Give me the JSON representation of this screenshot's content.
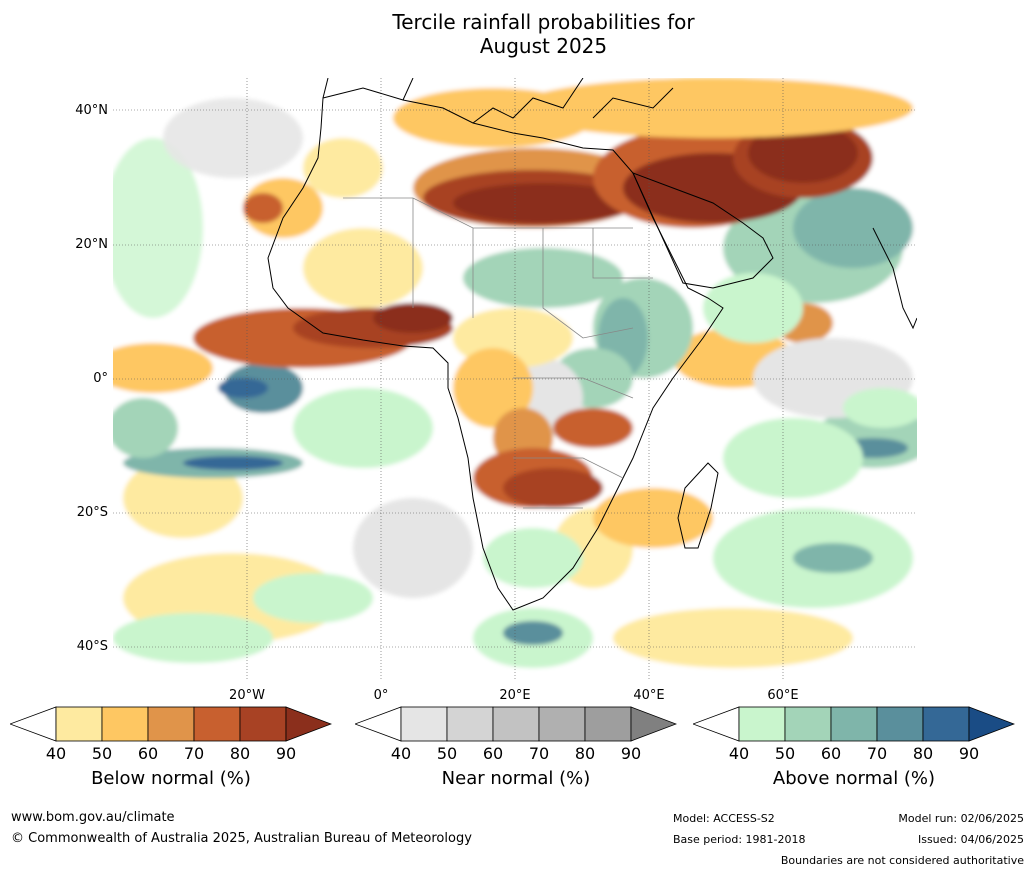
{
  "title_line1": "Tercile rainfall probabilities for",
  "title_line2": "August 2025",
  "lat_labels": [
    "40°N",
    "20°N",
    "0°",
    "20°S",
    "40°S"
  ],
  "lon_labels": [
    "20°W",
    "0°",
    "20°E",
    "40°E",
    "60°E"
  ],
  "colorbars": [
    {
      "label": "Below normal (%)",
      "ticks": [
        "40",
        "50",
        "60",
        "70",
        "80",
        "90"
      ],
      "colors": [
        "#ffffff",
        "#feeaa0",
        "#fec762",
        "#e0944a",
        "#c8602f",
        "#a84224",
        "#8b2f1c"
      ]
    },
    {
      "label": "Near normal (%)",
      "ticks": [
        "40",
        "50",
        "60",
        "70",
        "80",
        "90"
      ],
      "colors": [
        "#ffffff",
        "#e5e5e5",
        "#d4d4d4",
        "#c2c2c2",
        "#b0b0b0",
        "#9e9e9e",
        "#808080"
      ]
    },
    {
      "label": "Above normal (%)",
      "ticks": [
        "40",
        "50",
        "60",
        "70",
        "80",
        "90"
      ],
      "colors": [
        "#ffffff",
        "#c9f5cd",
        "#a3d4b8",
        "#7fb5aa",
        "#5a8f9c",
        "#346896",
        "#1a4c85"
      ]
    }
  ],
  "footer": {
    "website": "www.bom.gov.au/climate",
    "copyright": "© Commonwealth of Australia 2025, Australian Bureau of Meteorology",
    "model": "Model: ACCESS-S2",
    "base_period": "Base period: 1981-2018",
    "model_run": "Model run: 02/06/2025",
    "issued": "Issued: 04/06/2025",
    "disclaimer": "Boundaries are not considered authoritative"
  }
}
